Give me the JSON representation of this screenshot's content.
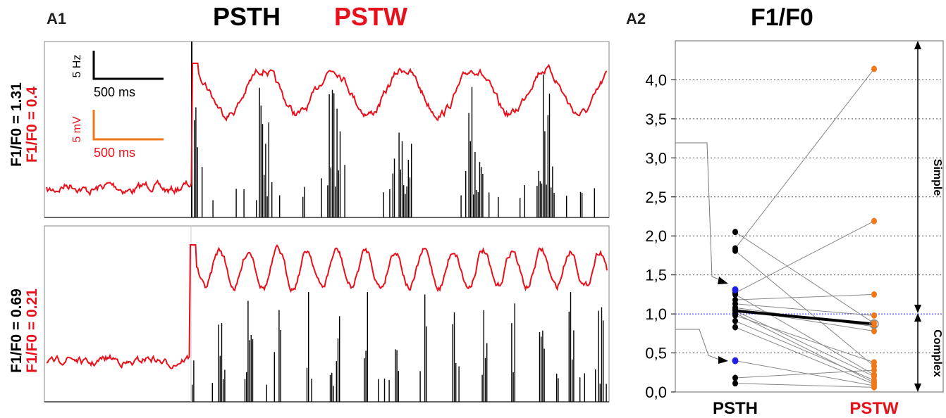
{
  "panel_a1": {
    "label": "A1",
    "title_psth": "PSTH",
    "title_pstw": "PSTW",
    "psth_color": "#000000",
    "pstw_color": "#e8101a",
    "scale_bars": {
      "psth_amplitude": "5 Hz",
      "psth_time": "500 ms",
      "pstw_amplitude": "5 mV",
      "pstw_time": "500 ms",
      "pstw_scale_color": "#f07818"
    },
    "top_cell": {
      "psth_ratio": "F1/F0 = 1.31",
      "pstw_ratio": "F1/F0 = 0.4"
    },
    "bottom_cell": {
      "psth_ratio": "F1/F0 = 0.69",
      "pstw_ratio": "F1/F0 = 0.21"
    }
  },
  "panel_a2": {
    "label": "A2",
    "title": "F1/F0",
    "simple_label": "Simple",
    "complex_label": "Complex"
  },
  "chart_data": [
    {
      "type": "line",
      "panel": "A1-top",
      "title": "PSTH PSTW",
      "series": [
        {
          "name": "PSTH",
          "color": "#000000",
          "style": "histogram",
          "stimulus_cycles": 6
        },
        {
          "name": "PSTW",
          "color": "#e8101a",
          "style": "trace",
          "stimulus_cycles": 6
        }
      ]
    },
    {
      "type": "line",
      "panel": "A1-bottom",
      "series": [
        {
          "name": "PSTH",
          "color": "#000000",
          "style": "histogram",
          "stimulus_cycles": 14
        },
        {
          "name": "PSTW",
          "color": "#e8101a",
          "style": "trace",
          "stimulus_cycles": 14
        }
      ]
    },
    {
      "type": "scatter",
      "panel": "A2",
      "title": "F1/F0",
      "categories": [
        "PSTH",
        "PSTW"
      ],
      "category_colors": [
        "#000000",
        "#f07818"
      ],
      "ylim": [
        0,
        4.5
      ],
      "yticks": [
        "0,0",
        "0,5",
        "1,0",
        "1,5",
        "2,0",
        "2,5",
        "3,0",
        "3,5",
        "4,0"
      ],
      "ytick_values": [
        0,
        0.5,
        1,
        1.5,
        2,
        2.5,
        3,
        3.5,
        4
      ],
      "grid": "horizontal dotted",
      "reference_line": {
        "y": 1.0,
        "color": "#3030ff"
      },
      "pairs": [
        [
          2.05,
          0.88
        ],
        [
          1.84,
          4.14
        ],
        [
          1.81,
          0.33
        ],
        [
          1.27,
          2.19
        ],
        [
          1.25,
          0.22
        ],
        [
          1.18,
          1.25
        ],
        [
          1.13,
          0.98
        ],
        [
          1.08,
          0.84
        ],
        [
          1.06,
          0.78
        ],
        [
          1.04,
          0.2
        ],
        [
          1.01,
          0.12
        ],
        [
          0.98,
          0.38
        ],
        [
          0.91,
          0.15
        ],
        [
          0.83,
          0.1
        ],
        [
          0.4,
          0.08
        ],
        [
          0.18,
          0.28
        ],
        [
          0.11,
          0.06
        ]
      ],
      "highlighted": [
        {
          "value": 1.31,
          "color": "#1e1ee6"
        },
        {
          "value": 0.4,
          "color": "#1e1ee6"
        }
      ],
      "means": [
        1.04,
        0.87
      ],
      "annotations": [
        "Simple",
        "Complex"
      ]
    }
  ]
}
